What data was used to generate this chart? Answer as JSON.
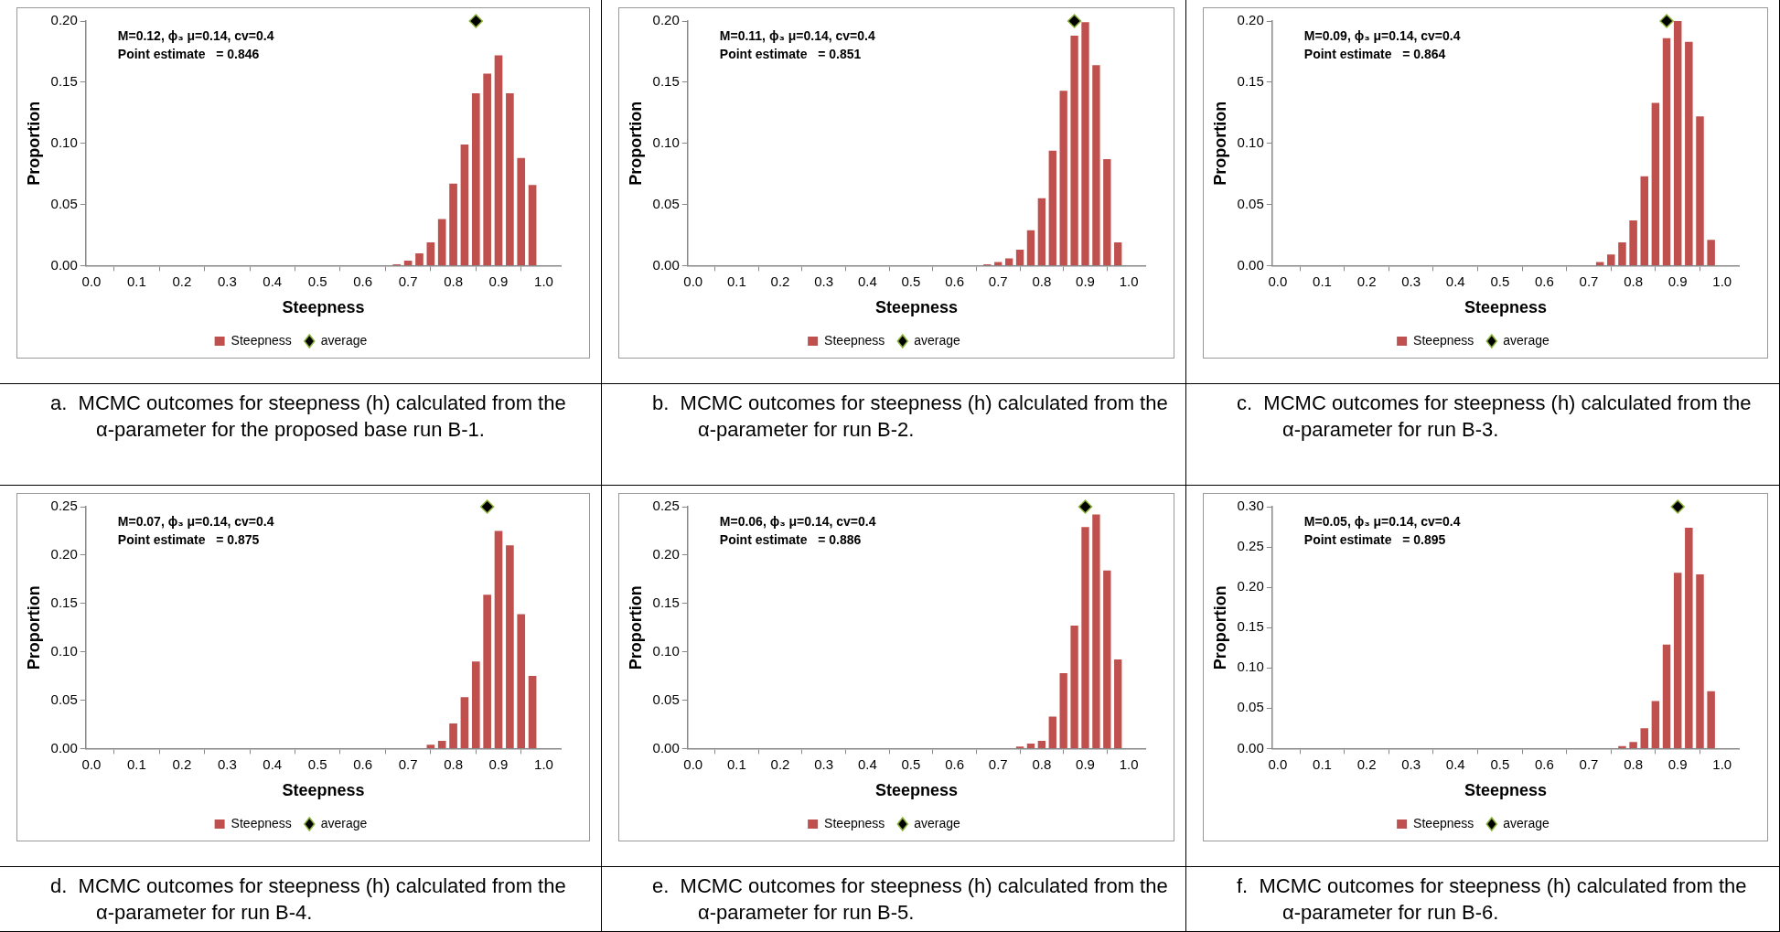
{
  "chart_data": [
    {
      "type": "bar",
      "xlabel": "Steepness",
      "ylabel": "Proportion",
      "legend": "bottom",
      "xlim": [
        -0.0125,
        1.0375
      ],
      "ylim": [
        0,
        0.2
      ],
      "xticks": [
        {
          "value": 0,
          "label": "0.0"
        },
        {
          "value": 0.1,
          "label": "0.1"
        },
        {
          "value": 0.2,
          "label": "0.2"
        },
        {
          "value": 0.3,
          "label": "0.3"
        },
        {
          "value": 0.4,
          "label": "0.4"
        },
        {
          "value": 0.5,
          "label": "0.5"
        },
        {
          "value": 0.6,
          "label": "0.6"
        },
        {
          "value": 0.7,
          "label": "0.7"
        },
        {
          "value": 0.8,
          "label": "0.8"
        },
        {
          "value": 0.9,
          "label": "0.9"
        },
        {
          "value": 1,
          "label": "1.0"
        }
      ],
      "yticks": [
        {
          "value": 0,
          "label": "0.00"
        },
        {
          "value": 0.05,
          "label": "0.05"
        },
        {
          "value": 0.1,
          "label": "0.10"
        },
        {
          "value": 0.15,
          "label": "0.15"
        },
        {
          "value": 0.2,
          "label": "0.20"
        }
      ],
      "series": [
        {
          "name": "Steepness",
          "color": "#c0504d",
          "x": [
            0.675,
            0.7,
            0.725,
            0.75,
            0.775,
            0.8,
            0.825,
            0.85,
            0.875,
            0.9,
            0.925,
            0.95,
            0.975
          ],
          "values": [
            0.001,
            0.004,
            0.01,
            0.019,
            0.038,
            0.067,
            0.099,
            0.141,
            0.157,
            0.172,
            0.141,
            0.088,
            0.066
          ]
        },
        {
          "name": "average",
          "type": "scatter",
          "marker": "diamond",
          "color": "#000000",
          "x": [
            0.85
          ],
          "values": [
            0.2
          ]
        }
      ],
      "annotations": [
        "M=0.12, ϕ₃ μ=0.14, cv=0.4",
        "Point estimate   = 0.846",
        "a.  MCMC outcomes for steepness (h) calculated from the α-parameter for the proposed base run B-1."
      ]
    },
    {
      "type": "bar",
      "xlabel": "Steepness",
      "ylabel": "Proportion",
      "legend": "bottom",
      "xlim": [
        -0.0125,
        1.0375
      ],
      "ylim": [
        0,
        0.2
      ],
      "xticks": [
        {
          "value": 0,
          "label": "0.0"
        },
        {
          "value": 0.1,
          "label": "0.1"
        },
        {
          "value": 0.2,
          "label": "0.2"
        },
        {
          "value": 0.3,
          "label": "0.3"
        },
        {
          "value": 0.4,
          "label": "0.4"
        },
        {
          "value": 0.5,
          "label": "0.5"
        },
        {
          "value": 0.6,
          "label": "0.6"
        },
        {
          "value": 0.7,
          "label": "0.7"
        },
        {
          "value": 0.8,
          "label": "0.8"
        },
        {
          "value": 0.9,
          "label": "0.9"
        },
        {
          "value": 1,
          "label": "1.0"
        }
      ],
      "yticks": [
        {
          "value": 0,
          "label": "0.00"
        },
        {
          "value": 0.05,
          "label": "0.05"
        },
        {
          "value": 0.1,
          "label": "0.10"
        },
        {
          "value": 0.15,
          "label": "0.15"
        },
        {
          "value": 0.2,
          "label": "0.20"
        }
      ],
      "series": [
        {
          "name": "Steepness",
          "color": "#c0504d",
          "x": [
            0.675,
            0.7,
            0.725,
            0.75,
            0.775,
            0.8,
            0.825,
            0.85,
            0.875,
            0.9,
            0.925,
            0.95,
            0.975
          ],
          "values": [
            0.001,
            0.003,
            0.006,
            0.013,
            0.029,
            0.055,
            0.094,
            0.143,
            0.188,
            0.199,
            0.164,
            0.087,
            0.019
          ]
        },
        {
          "name": "average",
          "type": "scatter",
          "marker": "diamond",
          "color": "#000000",
          "x": [
            0.875
          ],
          "values": [
            0.2
          ]
        }
      ],
      "annotations": [
        "M=0.11, ϕ₃ μ=0.14, cv=0.4",
        "Point estimate   = 0.851",
        "b.  MCMC outcomes for steepness (h) calculated from the α-parameter for run B-2."
      ]
    },
    {
      "type": "bar",
      "xlabel": "Steepness",
      "ylabel": "Proportion",
      "legend": "bottom",
      "xlim": [
        -0.0125,
        1.0375
      ],
      "ylim": [
        0,
        0.2
      ],
      "xticks": [
        {
          "value": 0,
          "label": "0.0"
        },
        {
          "value": 0.1,
          "label": "0.1"
        },
        {
          "value": 0.2,
          "label": "0.2"
        },
        {
          "value": 0.3,
          "label": "0.3"
        },
        {
          "value": 0.4,
          "label": "0.4"
        },
        {
          "value": 0.5,
          "label": "0.5"
        },
        {
          "value": 0.6,
          "label": "0.6"
        },
        {
          "value": 0.7,
          "label": "0.7"
        },
        {
          "value": 0.8,
          "label": "0.8"
        },
        {
          "value": 0.9,
          "label": "0.9"
        },
        {
          "value": 1,
          "label": "1.0"
        }
      ],
      "yticks": [
        {
          "value": 0,
          "label": "0.00"
        },
        {
          "value": 0.05,
          "label": "0.05"
        },
        {
          "value": 0.1,
          "label": "0.10"
        },
        {
          "value": 0.15,
          "label": "0.15"
        },
        {
          "value": 0.2,
          "label": "0.20"
        }
      ],
      "series": [
        {
          "name": "Steepness",
          "color": "#c0504d",
          "x": [
            0.725,
            0.75,
            0.775,
            0.8,
            0.825,
            0.85,
            0.875,
            0.9,
            0.925,
            0.95,
            0.975
          ],
          "values": [
            0.003,
            0.009,
            0.019,
            0.037,
            0.073,
            0.133,
            0.186,
            0.2,
            0.183,
            0.122,
            0.021
          ]
        },
        {
          "name": "average",
          "type": "scatter",
          "marker": "diamond",
          "color": "#000000",
          "x": [
            0.875
          ],
          "values": [
            0.2
          ]
        }
      ],
      "annotations": [
        "M=0.09, ϕ₃ μ=0.14, cv=0.4",
        "Point estimate   = 0.864",
        "c.  MCMC outcomes for steepness (h) calculated from the α-parameter for run B-3."
      ]
    },
    {
      "type": "bar",
      "xlabel": "Steepness",
      "ylabel": "Proportion",
      "legend": "bottom",
      "xlim": [
        -0.0125,
        1.0375
      ],
      "ylim": [
        0,
        0.25
      ],
      "xticks": [
        {
          "value": 0,
          "label": "0.0"
        },
        {
          "value": 0.1,
          "label": "0.1"
        },
        {
          "value": 0.2,
          "label": "0.2"
        },
        {
          "value": 0.3,
          "label": "0.3"
        },
        {
          "value": 0.4,
          "label": "0.4"
        },
        {
          "value": 0.5,
          "label": "0.5"
        },
        {
          "value": 0.6,
          "label": "0.6"
        },
        {
          "value": 0.7,
          "label": "0.7"
        },
        {
          "value": 0.8,
          "label": "0.8"
        },
        {
          "value": 0.9,
          "label": "0.9"
        },
        {
          "value": 1,
          "label": "1.0"
        }
      ],
      "yticks": [
        {
          "value": 0,
          "label": "0.00"
        },
        {
          "value": 0.05,
          "label": "0.05"
        },
        {
          "value": 0.1,
          "label": "0.10"
        },
        {
          "value": 0.15,
          "label": "0.15"
        },
        {
          "value": 0.2,
          "label": "0.20"
        },
        {
          "value": 0.25,
          "label": "0.25"
        }
      ],
      "series": [
        {
          "name": "Steepness",
          "color": "#c0504d",
          "x": [
            0.75,
            0.775,
            0.8,
            0.825,
            0.85,
            0.875,
            0.9,
            0.925,
            0.95,
            0.975
          ],
          "values": [
            0.004,
            0.008,
            0.026,
            0.053,
            0.09,
            0.159,
            0.225,
            0.21,
            0.139,
            0.075
          ]
        },
        {
          "name": "average",
          "type": "scatter",
          "marker": "diamond",
          "color": "#000000",
          "x": [
            0.875
          ],
          "values": [
            0.25
          ]
        }
      ],
      "annotations": [
        "M=0.07, ϕ₃ μ=0.14, cv=0.4",
        "Point estimate   = 0.875",
        "d.  MCMC outcomes for steepness (h) calculated from the α-parameter for run B-4."
      ]
    },
    {
      "type": "bar",
      "xlabel": "Steepness",
      "ylabel": "Proportion",
      "legend": "bottom",
      "xlim": [
        -0.0125,
        1.0375
      ],
      "ylim": [
        0,
        0.25
      ],
      "xticks": [
        {
          "value": 0,
          "label": "0.0"
        },
        {
          "value": 0.1,
          "label": "0.1"
        },
        {
          "value": 0.2,
          "label": "0.2"
        },
        {
          "value": 0.3,
          "label": "0.3"
        },
        {
          "value": 0.4,
          "label": "0.4"
        },
        {
          "value": 0.5,
          "label": "0.5"
        },
        {
          "value": 0.6,
          "label": "0.6"
        },
        {
          "value": 0.7,
          "label": "0.7"
        },
        {
          "value": 0.8,
          "label": "0.8"
        },
        {
          "value": 0.9,
          "label": "0.9"
        },
        {
          "value": 1,
          "label": "1.0"
        }
      ],
      "yticks": [
        {
          "value": 0,
          "label": "0.00"
        },
        {
          "value": 0.05,
          "label": "0.05"
        },
        {
          "value": 0.1,
          "label": "0.10"
        },
        {
          "value": 0.15,
          "label": "0.15"
        },
        {
          "value": 0.2,
          "label": "0.20"
        },
        {
          "value": 0.25,
          "label": "0.25"
        }
      ],
      "series": [
        {
          "name": "Steepness",
          "color": "#c0504d",
          "x": [
            0.75,
            0.775,
            0.8,
            0.825,
            0.85,
            0.875,
            0.9,
            0.925,
            0.95,
            0.975
          ],
          "values": [
            0.002,
            0.005,
            0.008,
            0.033,
            0.078,
            0.127,
            0.229,
            0.242,
            0.184,
            0.092
          ]
        },
        {
          "name": "average",
          "type": "scatter",
          "marker": "diamond",
          "color": "#000000",
          "x": [
            0.9
          ],
          "values": [
            0.25
          ]
        }
      ],
      "annotations": [
        "M=0.06, ϕ₃ μ=0.14, cv=0.4",
        "Point estimate   = 0.886",
        "e.  MCMC outcomes for steepness (h) calculated from the α-parameter for run B-5."
      ]
    },
    {
      "type": "bar",
      "xlabel": "Steepness",
      "ylabel": "Proportion",
      "legend": "bottom",
      "xlim": [
        -0.0125,
        1.0375
      ],
      "ylim": [
        0,
        0.3
      ],
      "xticks": [
        {
          "value": 0,
          "label": "0.0"
        },
        {
          "value": 0.1,
          "label": "0.1"
        },
        {
          "value": 0.2,
          "label": "0.2"
        },
        {
          "value": 0.3,
          "label": "0.3"
        },
        {
          "value": 0.4,
          "label": "0.4"
        },
        {
          "value": 0.5,
          "label": "0.5"
        },
        {
          "value": 0.6,
          "label": "0.6"
        },
        {
          "value": 0.7,
          "label": "0.7"
        },
        {
          "value": 0.8,
          "label": "0.8"
        },
        {
          "value": 0.9,
          "label": "0.9"
        },
        {
          "value": 1,
          "label": "1.0"
        }
      ],
      "yticks": [
        {
          "value": 0,
          "label": "0.00"
        },
        {
          "value": 0.05,
          "label": "0.05"
        },
        {
          "value": 0.1,
          "label": "0.10"
        },
        {
          "value": 0.15,
          "label": "0.15"
        },
        {
          "value": 0.2,
          "label": "0.20"
        },
        {
          "value": 0.25,
          "label": "0.25"
        },
        {
          "value": 0.3,
          "label": "0.30"
        }
      ],
      "series": [
        {
          "name": "Steepness",
          "color": "#c0504d",
          "x": [
            0.775,
            0.8,
            0.825,
            0.85,
            0.875,
            0.9,
            0.925,
            0.95,
            0.975
          ],
          "values": [
            0.003,
            0.008,
            0.025,
            0.059,
            0.129,
            0.218,
            0.274,
            0.216,
            0.071
          ]
        },
        {
          "name": "average",
          "type": "scatter",
          "marker": "diamond",
          "color": "#000000",
          "x": [
            0.9
          ],
          "values": [
            0.3
          ]
        }
      ],
      "annotations": [
        "M=0.05, ϕ₃ μ=0.14, cv=0.4",
        "Point estimate   = 0.895",
        "f.  MCMC outcomes for steepness (h) calculated from the α-parameter for run B-6."
      ]
    }
  ]
}
